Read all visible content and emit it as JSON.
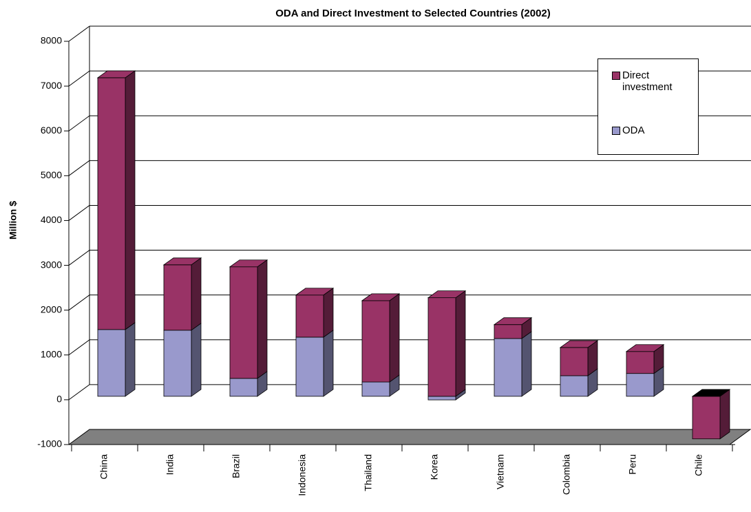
{
  "chart_data": {
    "type": "bar",
    "stacked": true,
    "three_d": true,
    "title": "ODA and Direct Investment to Selected Countries (2002)",
    "y_label": "Million $",
    "categories": [
      "China",
      "India",
      "Brazil",
      "Indonesia",
      "Thailand",
      "Korea",
      "Vietnam",
      "Colombia",
      "Peru",
      "Chile"
    ],
    "series": [
      {
        "name": "ODA",
        "color": "#9999cc",
        "values": [
          1490,
          1475,
          400,
          1320,
          320,
          -80,
          1290,
          460,
          510,
          0
        ]
      },
      {
        "name": "Direct investment",
        "color": "#993366",
        "values": [
          5620,
          1460,
          2490,
          940,
          1815,
          2200,
          310,
          630,
          490,
          -950
        ]
      }
    ],
    "ylim": [
      -1000,
      8000
    ],
    "yticks": [
      -1000,
      0,
      1000,
      2000,
      3000,
      4000,
      5000,
      6000,
      7000,
      8000
    ],
    "grid": true
  }
}
